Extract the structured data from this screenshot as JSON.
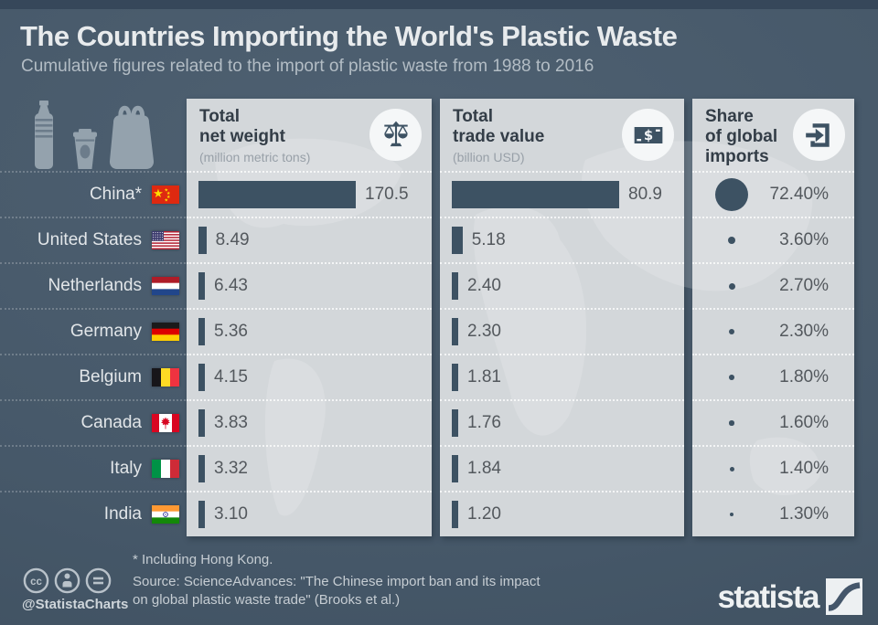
{
  "header": {
    "title": "The Countries Importing the World's Plastic Waste",
    "subtitle": "Cumulative figures related to the import of plastic waste from 1988 to 2016"
  },
  "columns": [
    {
      "title_line1": "Total",
      "title_line2": "net weight",
      "unit": "(million metric tons)",
      "icon": "scale-icon"
    },
    {
      "title_line1": "Total",
      "title_line2": "trade value",
      "unit": "(billion USD)",
      "icon": "banknote-icon"
    },
    {
      "title_line1": "Share",
      "title_line2": "of global",
      "title_line3": "imports",
      "icon": "import-arrow-icon"
    }
  ],
  "decorative_icons": [
    "plastic-bottle-icon",
    "coffee-cup-icon",
    "plastic-bag-icon"
  ],
  "chart_data": {
    "type": "bar",
    "title": "The Countries Importing the World's Plastic Waste",
    "subtitle": "Cumulative figures related to the import of plastic waste from 1988 to 2016",
    "columns": [
      {
        "label": "Total net weight",
        "unit": "million metric tons"
      },
      {
        "label": "Total trade value",
        "unit": "billion USD"
      },
      {
        "label": "Share of global imports",
        "unit": "percent"
      }
    ],
    "rows": [
      {
        "country": "China*",
        "flag": "cn",
        "net_weight": 170.5,
        "net_weight_label": "170.5",
        "trade_value": 80.9,
        "trade_value_label": "80.9",
        "share": 72.4,
        "share_label": "72.40%"
      },
      {
        "country": "United States",
        "flag": "us",
        "net_weight": 8.49,
        "net_weight_label": "8.49",
        "trade_value": 5.18,
        "trade_value_label": "5.18",
        "share": 3.6,
        "share_label": "3.60%"
      },
      {
        "country": "Netherlands",
        "flag": "nl",
        "net_weight": 6.43,
        "net_weight_label": "6.43",
        "trade_value": 2.4,
        "trade_value_label": "2.40",
        "share": 2.7,
        "share_label": "2.70%"
      },
      {
        "country": "Germany",
        "flag": "de",
        "net_weight": 5.36,
        "net_weight_label": "5.36",
        "trade_value": 2.3,
        "trade_value_label": "2.30",
        "share": 2.3,
        "share_label": "2.30%"
      },
      {
        "country": "Belgium",
        "flag": "be",
        "net_weight": 4.15,
        "net_weight_label": "4.15",
        "trade_value": 1.81,
        "trade_value_label": "1.81",
        "share": 1.8,
        "share_label": "1.80%"
      },
      {
        "country": "Canada",
        "flag": "ca",
        "net_weight": 3.83,
        "net_weight_label": "3.83",
        "trade_value": 1.76,
        "trade_value_label": "1.76",
        "share": 1.6,
        "share_label": "1.60%"
      },
      {
        "country": "Italy",
        "flag": "it",
        "net_weight": 3.32,
        "net_weight_label": "3.32",
        "trade_value": 1.84,
        "trade_value_label": "1.84",
        "share": 1.4,
        "share_label": "1.40%"
      },
      {
        "country": "India",
        "flag": "in",
        "net_weight": 3.1,
        "net_weight_label": "3.10",
        "trade_value": 1.2,
        "trade_value_label": "1.20",
        "share": 1.3,
        "share_label": "1.30%"
      }
    ]
  },
  "footer": {
    "note": "* Including Hong Kong.",
    "source_line1": "Source: ScienceAdvances: \"The Chinese import ban and its impact",
    "source_line2": "on global plastic waste trade\" (Brooks et al.)",
    "credit": "@StatistaCharts",
    "license_icons": [
      "cc-icon",
      "attribution-icon",
      "equals-icon"
    ],
    "logo_text": "statista"
  },
  "colors": {
    "accent_bar": "#3d5263",
    "column_bg": "#d3d7da",
    "page_bg": "#46586a",
    "top_strip": "#36475a",
    "value_text": "#53585d",
    "light_text": "#e8ebed"
  }
}
